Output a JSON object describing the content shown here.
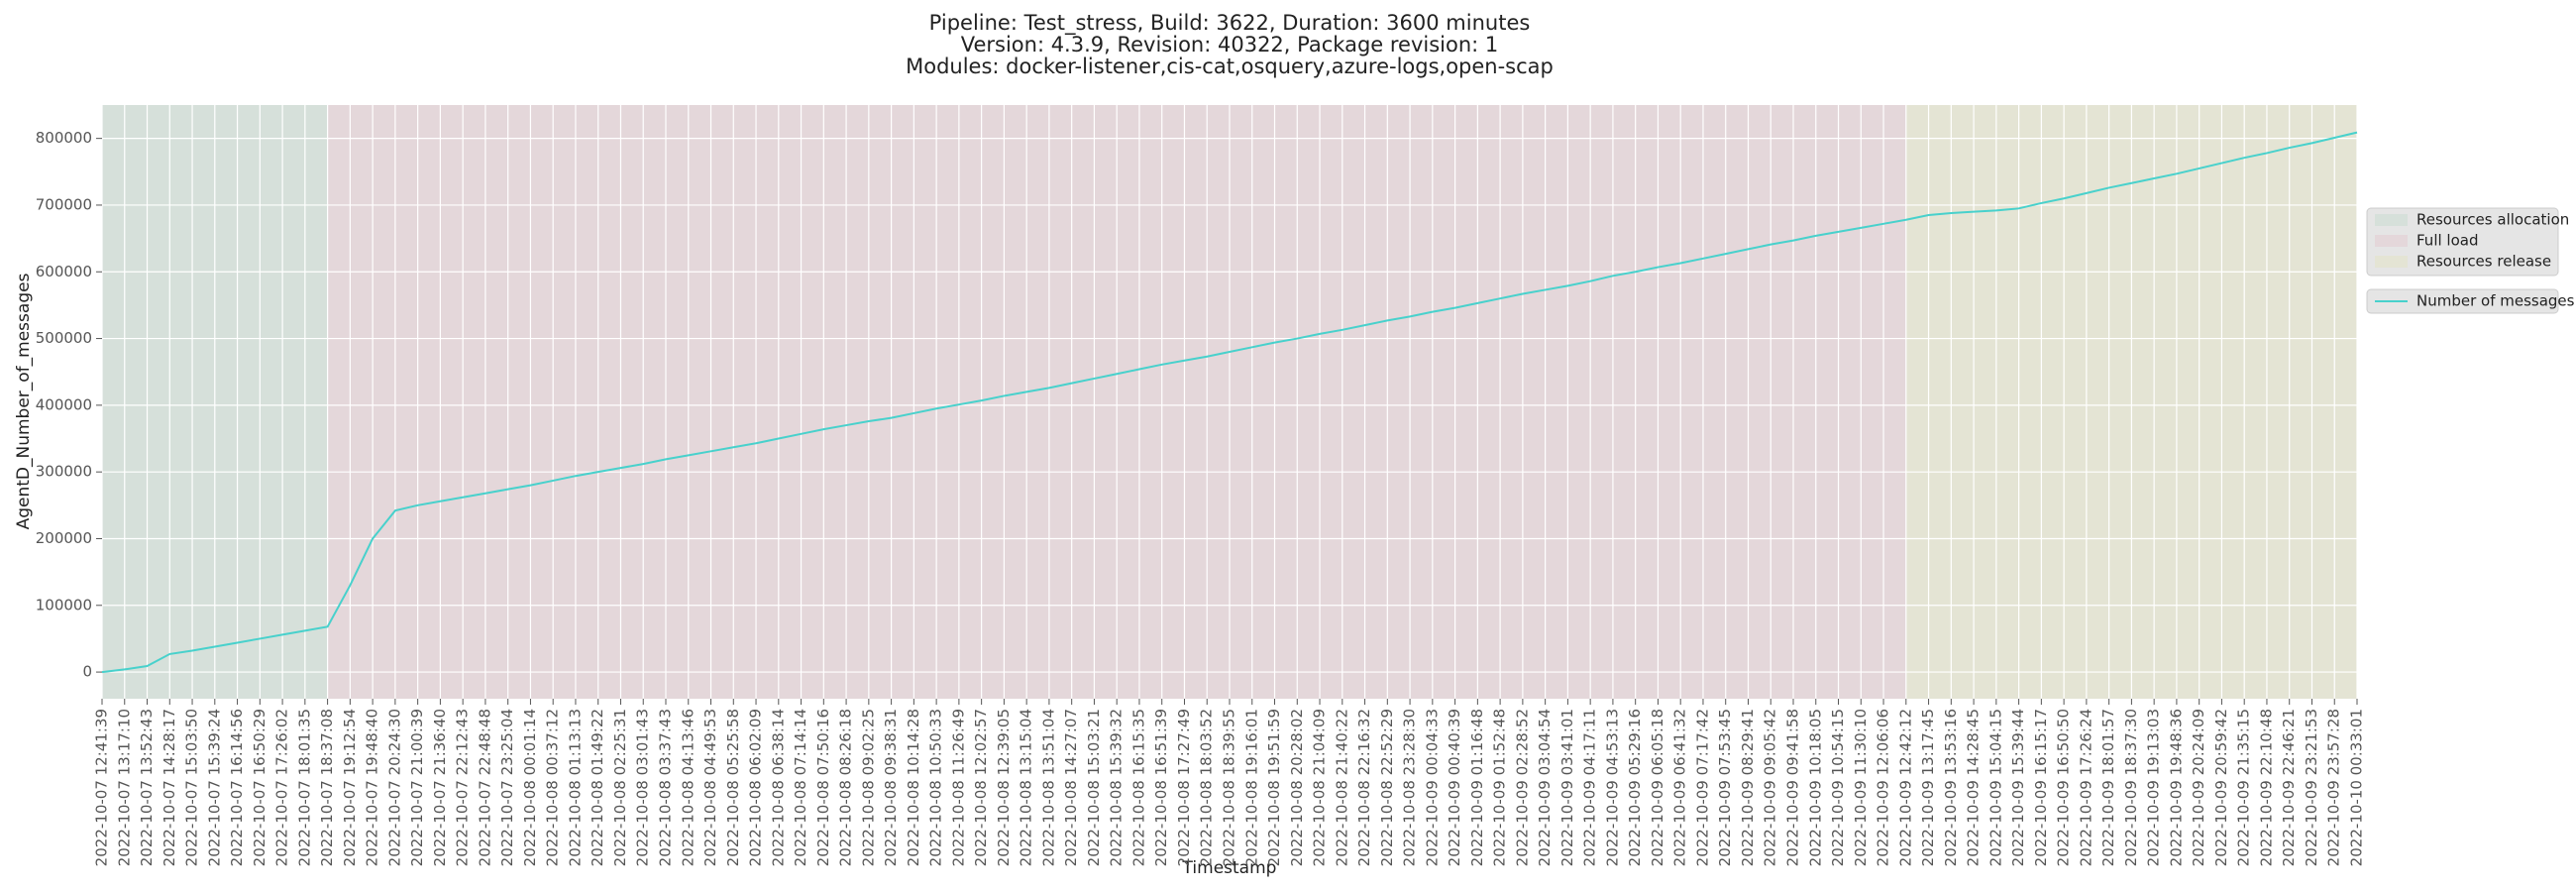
{
  "chart_data": {
    "type": "line",
    "title": [
      "Pipeline: Test_stress, Build: 3622, Duration: 3600 minutes",
      "Version: 4.3.9, Revision: 40322, Package revision: 1",
      "Modules: docker-listener,cis-cat,osquery,azure-logs,open-scap"
    ],
    "x_label": "Timestamp",
    "y_label": "AgentD_Number_of_messages",
    "categories": [
      "2022-10-07 12:41:39",
      "2022-10-07 13:17:10",
      "2022-10-07 13:52:43",
      "2022-10-07 14:28:17",
      "2022-10-07 15:03:50",
      "2022-10-07 15:39:24",
      "2022-10-07 16:14:56",
      "2022-10-07 16:50:29",
      "2022-10-07 17:26:02",
      "2022-10-07 18:01:35",
      "2022-10-07 18:37:08",
      "2022-10-07 19:12:54",
      "2022-10-07 19:48:40",
      "2022-10-07 20:24:30",
      "2022-10-07 21:00:39",
      "2022-10-07 21:36:40",
      "2022-10-07 22:12:43",
      "2022-10-07 22:48:48",
      "2022-10-07 23:25:04",
      "2022-10-08 00:01:14",
      "2022-10-08 00:37:12",
      "2022-10-08 01:13:13",
      "2022-10-08 01:49:22",
      "2022-10-08 02:25:31",
      "2022-10-08 03:01:43",
      "2022-10-08 03:37:43",
      "2022-10-08 04:13:46",
      "2022-10-08 04:49:53",
      "2022-10-08 05:25:58",
      "2022-10-08 06:02:09",
      "2022-10-08 06:38:14",
      "2022-10-08 07:14:14",
      "2022-10-08 07:50:16",
      "2022-10-08 08:26:18",
      "2022-10-08 09:02:25",
      "2022-10-08 09:38:31",
      "2022-10-08 10:14:28",
      "2022-10-08 10:50:33",
      "2022-10-08 11:26:49",
      "2022-10-08 12:02:57",
      "2022-10-08 12:39:05",
      "2022-10-08 13:15:04",
      "2022-10-08 13:51:04",
      "2022-10-08 14:27:07",
      "2022-10-08 15:03:21",
      "2022-10-08 15:39:32",
      "2022-10-08 16:15:35",
      "2022-10-08 16:51:39",
      "2022-10-08 17:27:49",
      "2022-10-08 18:03:52",
      "2022-10-08 18:39:55",
      "2022-10-08 19:16:01",
      "2022-10-08 19:51:59",
      "2022-10-08 20:28:02",
      "2022-10-08 21:04:09",
      "2022-10-08 21:40:22",
      "2022-10-08 22:16:32",
      "2022-10-08 22:52:29",
      "2022-10-08 23:28:30",
      "2022-10-09 00:04:33",
      "2022-10-09 00:40:39",
      "2022-10-09 01:16:48",
      "2022-10-09 01:52:48",
      "2022-10-09 02:28:52",
      "2022-10-09 03:04:54",
      "2022-10-09 03:41:01",
      "2022-10-09 04:17:11",
      "2022-10-09 04:53:13",
      "2022-10-09 05:29:16",
      "2022-10-09 06:05:18",
      "2022-10-09 06:41:32",
      "2022-10-09 07:17:42",
      "2022-10-09 07:53:45",
      "2022-10-09 08:29:41",
      "2022-10-09 09:05:42",
      "2022-10-09 09:41:58",
      "2022-10-09 10:18:05",
      "2022-10-09 10:54:15",
      "2022-10-09 11:30:10",
      "2022-10-09 12:06:06",
      "2022-10-09 12:42:12",
      "2022-10-09 13:17:45",
      "2022-10-09 13:53:16",
      "2022-10-09 14:28:45",
      "2022-10-09 15:04:15",
      "2022-10-09 15:39:44",
      "2022-10-09 16:15:17",
      "2022-10-09 16:50:50",
      "2022-10-09 17:26:24",
      "2022-10-09 18:01:57",
      "2022-10-09 18:37:30",
      "2022-10-09 19:13:03",
      "2022-10-09 19:48:36",
      "2022-10-09 20:24:09",
      "2022-10-09 20:59:42",
      "2022-10-09 21:35:15",
      "2022-10-09 22:10:48",
      "2022-10-09 22:46:21",
      "2022-10-09 23:21:53",
      "2022-10-09 23:57:28",
      "2022-10-10 00:33:01"
    ],
    "series": [
      {
        "name": "Number of messages",
        "color": "#48d1cc",
        "values": [
          0,
          4000,
          9000,
          27000,
          32000,
          38000,
          44000,
          50000,
          56000,
          62000,
          68000,
          130000,
          200000,
          242000,
          250000,
          256000,
          262000,
          268000,
          274000,
          280000,
          287000,
          294000,
          300000,
          306000,
          312000,
          319000,
          325000,
          331000,
          337000,
          343000,
          350000,
          357000,
          364000,
          370000,
          376000,
          381000,
          388000,
          395000,
          401000,
          407000,
          414000,
          420000,
          426000,
          433000,
          440000,
          447000,
          454000,
          461000,
          467000,
          473000,
          480000,
          487000,
          494000,
          500000,
          507000,
          513000,
          520000,
          527000,
          533000,
          540000,
          546000,
          553000,
          560000,
          567000,
          573000,
          579000,
          586000,
          594000,
          600000,
          607000,
          613000,
          620000,
          627000,
          634000,
          641000,
          647000,
          654000,
          660000,
          666000,
          672000,
          678000,
          685000,
          688000,
          690000,
          692000,
          695000,
          703000,
          710000,
          718000,
          726000,
          733000,
          740000,
          747000,
          755000,
          763000,
          771000,
          778000,
          786000,
          793000,
          801000,
          809000
        ]
      }
    ],
    "phases": [
      {
        "name": "Resources allocation",
        "color": "#d6e0da",
        "start": "2022-10-07 12:41:39",
        "end": "2022-10-07 18:37:08"
      },
      {
        "name": "Full load",
        "color": "#e4d7da",
        "start": "2022-10-07 18:37:08",
        "end": "2022-10-09 12:42:12"
      },
      {
        "name": "Resources release",
        "color": "#e4e4d4",
        "start": "2022-10-09 12:42:12",
        "end": "2022-10-10 00:33:01"
      }
    ],
    "ylim": [
      -40000,
      850000
    ],
    "yticks": [
      0,
      100000,
      200000,
      300000,
      400000,
      500000,
      600000,
      700000,
      800000
    ],
    "grid": true
  }
}
